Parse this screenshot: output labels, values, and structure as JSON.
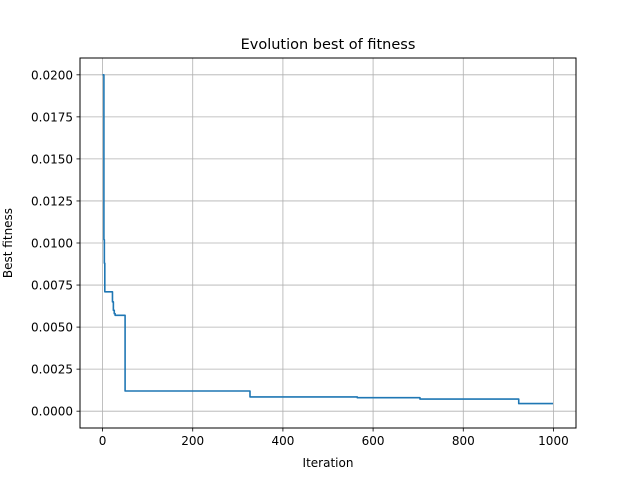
{
  "chart_data": {
    "type": "line",
    "title": "Evolution best of fitness",
    "xlabel": "Iteration",
    "ylabel": "Best fitness",
    "xlim": [
      -50,
      1050
    ],
    "ylim": [
      -0.001,
      0.021
    ],
    "xticks": [
      0,
      200,
      400,
      600,
      800,
      1000
    ],
    "yticks": [
      0.0,
      0.0025,
      0.005,
      0.0075,
      0.01,
      0.0125,
      0.015,
      0.0175,
      0.02
    ],
    "xtick_labels": [
      "0",
      "200",
      "400",
      "600",
      "800",
      "1000"
    ],
    "ytick_labels": [
      "0.0000",
      "0.0025",
      "0.0050",
      "0.0075",
      "0.0100",
      "0.0125",
      "0.0150",
      "0.0175",
      "0.0200"
    ],
    "grid": true,
    "line_color": "#1f77b4",
    "series": [
      {
        "step": "post",
        "x": [
          0,
          3,
          4,
          5,
          20,
          22,
          24,
          26,
          28,
          48,
          50,
          325,
          327,
          563,
          565,
          702,
          704,
          921,
          923,
          999
        ],
        "y": [
          0.02,
          0.0102,
          0.0088,
          0.0071,
          0.0071,
          0.0065,
          0.006,
          0.0058,
          0.0057,
          0.0057,
          0.0012,
          0.0012,
          0.00085,
          0.00085,
          0.0008,
          0.0008,
          0.00072,
          0.00072,
          0.00045,
          0.00045
        ]
      }
    ]
  }
}
